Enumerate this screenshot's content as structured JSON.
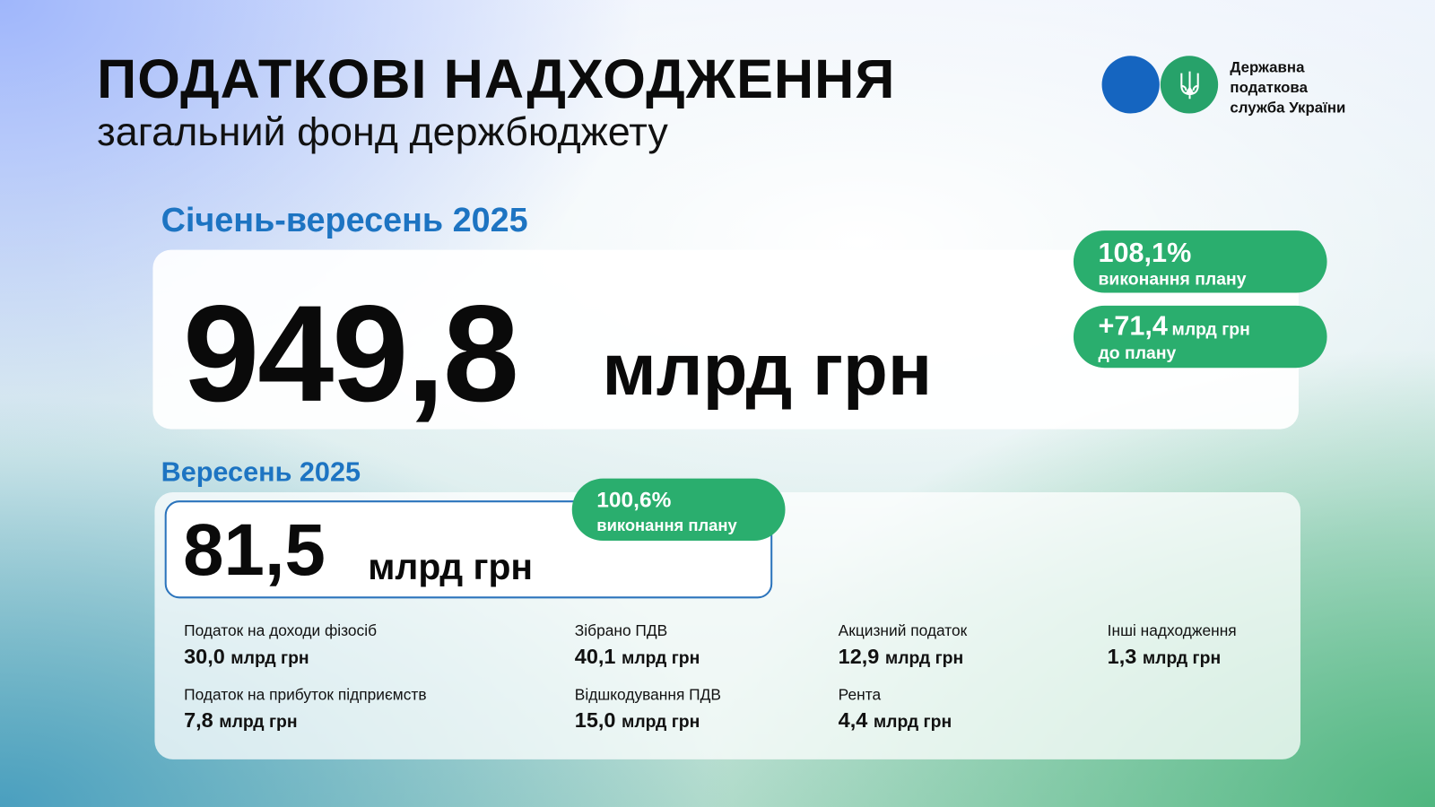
{
  "header": {
    "title": "ПОДАТКОВІ НАДХОДЖЕННЯ",
    "subtitle": "загальний фонд держбюджету"
  },
  "logo": {
    "text_lines": [
      "Державна",
      "податкова",
      "служба України"
    ],
    "colors": {
      "blue": "#1565c0",
      "green": "#27a26a"
    },
    "emblem": "trident-icon"
  },
  "ytd": {
    "period": "Січень-вересень 2025",
    "value": "949,8",
    "unit": "млрд грн",
    "plan_pct": "108,1%",
    "plan_pct_label": "виконання плану",
    "over_plan": "+71,4",
    "over_plan_unit": "млрд грн",
    "over_plan_label": "до плану"
  },
  "month": {
    "period": "Вересень 2025",
    "value": "81,5",
    "unit": "млрд грн",
    "plan_pct": "100,6%",
    "plan_pct_label": "виконання плану",
    "items": [
      {
        "label": "Податок на доходи фізосіб",
        "value": "30,0",
        "unit": "млрд грн"
      },
      {
        "label": "Зібрано ПДВ",
        "value": "40,1",
        "unit": "млрд грн"
      },
      {
        "label": "Акцизний податок",
        "value": "12,9",
        "unit": "млрд грн"
      },
      {
        "label": "Інші надходження",
        "value": "1,3",
        "unit": "млрд грн"
      },
      {
        "label": "Податок на прибуток підприємств",
        "value": "7,8",
        "unit": "млрд грн"
      },
      {
        "label": "Відшкодування ПДВ",
        "value": "15,0",
        "unit": "млрд грн"
      },
      {
        "label": "Рента",
        "value": "4,4",
        "unit": "млрд грн"
      }
    ]
  },
  "colors": {
    "accent_blue": "#1d74c2",
    "accent_green": "#2aae6e"
  }
}
